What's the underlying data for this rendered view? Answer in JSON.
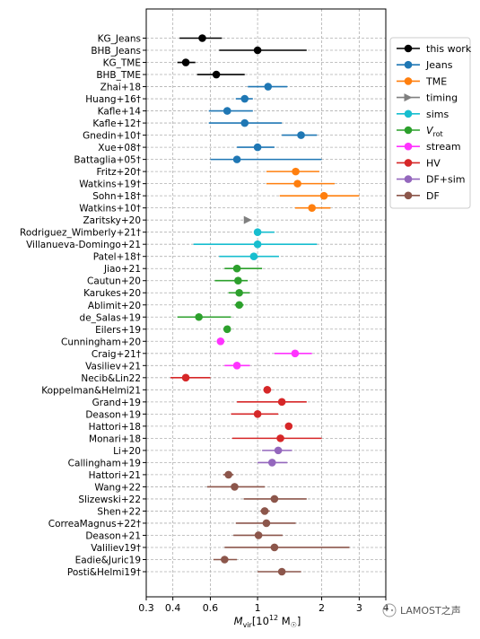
{
  "chart_data": {
    "type": "scatter",
    "xscale": "log",
    "xlim": [
      0.3,
      4.0
    ],
    "xticks": [
      0.3,
      0.4,
      0.6,
      1,
      2,
      3,
      4
    ],
    "xtick_labels": [
      "0.3",
      "0.4",
      "0.6",
      "1",
      "2",
      "3",
      "4"
    ],
    "xlabel_main": "M",
    "xlabel_sub": "vir",
    "xlabel_units": "[10",
    "xlabel_exp": "12",
    "xlabel_tail": " M",
    "xlabel_sun": "☉",
    "xlabel_close": "]",
    "grid": true,
    "legend_placement": "top-right",
    "colors": {
      "this work": "#000000",
      "Jeans": "#1f77b4",
      "TME": "#ff7f0e",
      "timing": "#7f7f7f",
      "sims": "#17becf",
      "V_rot": "#2ca02c",
      "stream": "#ff33ff",
      "HV": "#d62728",
      "DF+sim": "#9467bd",
      "DF": "#8c564b"
    },
    "series": [
      {
        "name": "this work",
        "legend": "this work",
        "marker": "circle"
      },
      {
        "name": "Jeans",
        "legend": "Jeans",
        "marker": "circle"
      },
      {
        "name": "TME",
        "legend": "TME",
        "marker": "circle"
      },
      {
        "name": "timing",
        "legend": "timing",
        "marker": "triangle"
      },
      {
        "name": "sims",
        "legend": "sims",
        "marker": "circle"
      },
      {
        "name": "V_rot",
        "legend": "V",
        "legend_sub": "rot",
        "marker": "circle"
      },
      {
        "name": "stream",
        "legend": "stream",
        "marker": "circle"
      },
      {
        "name": "HV",
        "legend": "HV",
        "marker": "circle"
      },
      {
        "name": "DF+sim",
        "legend": "DF+sim",
        "marker": "circle"
      },
      {
        "name": "DF",
        "legend": "DF",
        "marker": "circle"
      }
    ],
    "points": [
      {
        "label": "KG_Jeans",
        "series": "this work",
        "value": 0.55,
        "low": 0.43,
        "high": 0.68
      },
      {
        "label": "BHB_Jeans",
        "series": "this work",
        "value": 1.0,
        "low": 0.66,
        "high": 1.7
      },
      {
        "label": "KG_TME",
        "series": "this work",
        "value": 0.46,
        "low": 0.42,
        "high": 0.51
      },
      {
        "label": "BHB_TME",
        "series": "this work",
        "value": 0.64,
        "low": 0.52,
        "high": 0.87
      },
      {
        "label": "Zhai+18",
        "series": "Jeans",
        "value": 1.12,
        "low": 0.9,
        "high": 1.38
      },
      {
        "label": "Huang+16†",
        "series": "Jeans",
        "value": 0.87,
        "low": 0.79,
        "high": 0.95
      },
      {
        "label": "Kafle+14",
        "series": "Jeans",
        "value": 0.72,
        "low": 0.59,
        "high": 0.95
      },
      {
        "label": "Kafle+12†",
        "series": "Jeans",
        "value": 0.87,
        "low": 0.59,
        "high": 1.3
      },
      {
        "label": "Gnedin+10†",
        "series": "Jeans",
        "value": 1.6,
        "low": 1.3,
        "high": 1.9
      },
      {
        "label": "Xue+08†",
        "series": "Jeans",
        "value": 1.0,
        "low": 0.8,
        "high": 1.2
      },
      {
        "label": "Battaglia+05†",
        "series": "Jeans",
        "value": 0.8,
        "low": 0.6,
        "high": 2.0
      },
      {
        "label": "Fritz+20†",
        "series": "TME",
        "value": 1.51,
        "low": 1.1,
        "high": 1.95
      },
      {
        "label": "Watkins+19†",
        "series": "TME",
        "value": 1.54,
        "low": 1.1,
        "high": 2.3
      },
      {
        "label": "Sohn+18†",
        "series": "TME",
        "value": 2.05,
        "low": 1.27,
        "high": 3.0
      },
      {
        "label": "Watkins+10†",
        "series": "TME",
        "value": 1.8,
        "low": 1.5,
        "high": 2.2
      },
      {
        "label": "Zaritsky+20",
        "series": "timing",
        "value": 0.9,
        "low": null,
        "high": null
      },
      {
        "label": "Rodriguez_Wimberly+21†",
        "series": "sims",
        "value": 1.0,
        "low": 1.0,
        "high": 1.2
      },
      {
        "label": "Villanueva-Domingo+21",
        "series": "sims",
        "value": 1.0,
        "low": 0.5,
        "high": 1.9
      },
      {
        "label": "Patel+18†",
        "series": "sims",
        "value": 0.96,
        "low": 0.66,
        "high": 1.26
      },
      {
        "label": "Jiao+21",
        "series": "V_rot",
        "value": 0.8,
        "low": 0.7,
        "high": 1.05
      },
      {
        "label": "Cautun+20",
        "series": "V_rot",
        "value": 0.81,
        "low": 0.63,
        "high": 0.9
      },
      {
        "label": "Karukes+20",
        "series": "V_rot",
        "value": 0.82,
        "low": 0.73,
        "high": 0.92
      },
      {
        "label": "Ablimit+20",
        "series": "V_rot",
        "value": 0.82,
        "low": 0.78,
        "high": 0.86
      },
      {
        "label": "de_Salas+19",
        "series": "V_rot",
        "value": 0.53,
        "low": 0.42,
        "high": 0.75
      },
      {
        "label": "Eilers+19",
        "series": "V_rot",
        "value": 0.72,
        "low": 0.7,
        "high": 0.74
      },
      {
        "label": "Cunningham+20",
        "series": "stream",
        "value": 0.67,
        "low": null,
        "high": null
      },
      {
        "label": "Craig+21†",
        "series": "stream",
        "value": 1.5,
        "low": 1.2,
        "high": 1.8
      },
      {
        "label": "Vasiliev+21",
        "series": "stream",
        "value": 0.8,
        "low": 0.7,
        "high": 0.92
      },
      {
        "label": "Necib&Lin22",
        "series": "HV",
        "value": 0.46,
        "low": 0.39,
        "high": 0.6
      },
      {
        "label": "Koppelman&Helmi21",
        "series": "HV",
        "value": 1.11,
        "low": 1.07,
        "high": 1.16
      },
      {
        "label": "Grand+19",
        "series": "HV",
        "value": 1.3,
        "low": 0.8,
        "high": 1.7
      },
      {
        "label": "Deason+19",
        "series": "HV",
        "value": 1.0,
        "low": 0.75,
        "high": 1.25
      },
      {
        "label": "Hattori+18",
        "series": "HV",
        "value": 1.4,
        "low": null,
        "high": null
      },
      {
        "label": "Monari+18",
        "series": "HV",
        "value": 1.28,
        "low": 0.76,
        "high": 2.0
      },
      {
        "label": "Li+20",
        "series": "DF+sim",
        "value": 1.25,
        "low": 1.05,
        "high": 1.45
      },
      {
        "label": "Callingham+19",
        "series": "DF+sim",
        "value": 1.17,
        "low": 1.0,
        "high": 1.38
      },
      {
        "label": "Hattori+21",
        "series": "DF",
        "value": 0.73,
        "low": 0.69,
        "high": 0.77
      },
      {
        "label": "Wang+22",
        "series": "DF",
        "value": 0.78,
        "low": 0.58,
        "high": 1.08
      },
      {
        "label": "Slizewski+22",
        "series": "DF",
        "value": 1.2,
        "low": 0.86,
        "high": 1.7
      },
      {
        "label": "Shen+22",
        "series": "DF",
        "value": 1.08,
        "low": 1.03,
        "high": 1.14
      },
      {
        "label": "CorreaMagnus+22†",
        "series": "DF",
        "value": 1.1,
        "low": 0.79,
        "high": 1.51
      },
      {
        "label": "Deason+21",
        "series": "DF",
        "value": 1.01,
        "low": 0.77,
        "high": 1.31
      },
      {
        "label": "Valiliev19†",
        "series": "DF",
        "value": 1.2,
        "low": 0.7,
        "high": 2.7
      },
      {
        "label": "Eadie&Juric19",
        "series": "DF",
        "value": 0.7,
        "low": 0.62,
        "high": 0.8
      },
      {
        "label": "Posti&Helmi19†",
        "series": "DF",
        "value": 1.3,
        "low": 1.0,
        "high": 1.6
      }
    ]
  },
  "watermark": {
    "text": "LAMOST之声"
  }
}
